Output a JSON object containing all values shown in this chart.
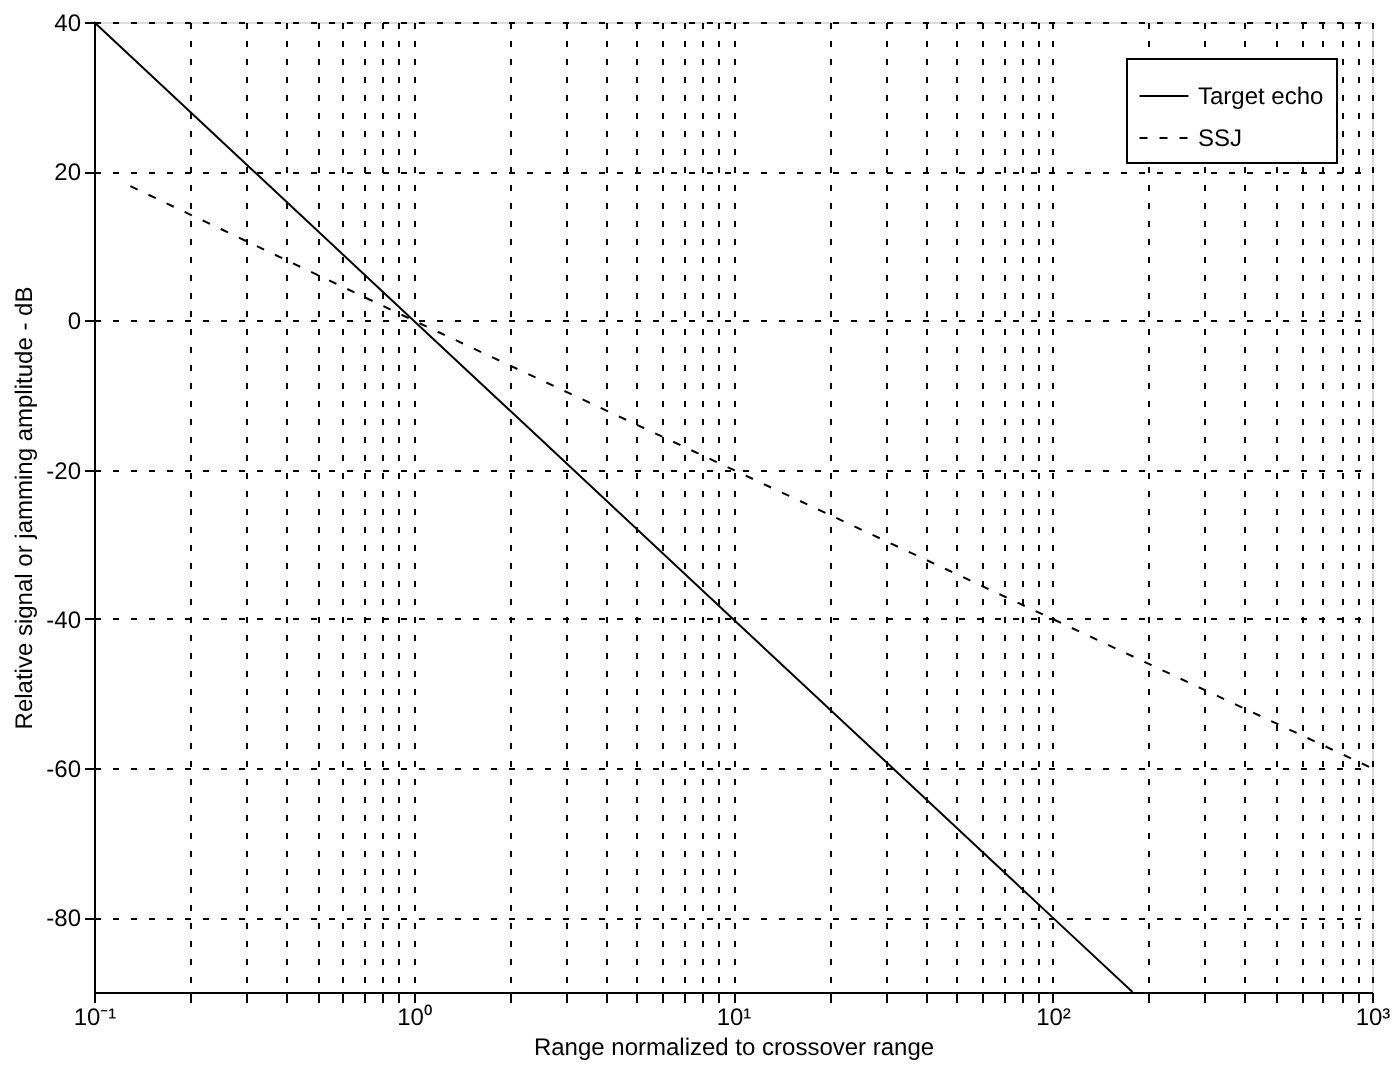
{
  "chart_data": {
    "type": "line",
    "xlabel": "Range normalized to crossover range",
    "ylabel": "Relative signal or jamming amplitude - dB",
    "xlim": [
      0.1,
      1000
    ],
    "ylim": [
      -90,
      40
    ],
    "log": "x",
    "grid": true,
    "legend": "top right",
    "marker": "none",
    "xticks": [
      {
        "value": 0.1,
        "label": "10⁻¹"
      },
      {
        "value": 0.2,
        "label": null
      },
      {
        "value": 0.3,
        "label": null
      },
      {
        "value": 0.4,
        "label": null
      },
      {
        "value": 0.5,
        "label": null
      },
      {
        "value": 0.6,
        "label": null
      },
      {
        "value": 0.7,
        "label": null
      },
      {
        "value": 0.8,
        "label": null
      },
      {
        "value": 0.9,
        "label": null
      },
      {
        "value": 1,
        "label": "10⁰"
      },
      {
        "value": 2,
        "label": null
      },
      {
        "value": 3,
        "label": null
      },
      {
        "value": 4,
        "label": null
      },
      {
        "value": 5,
        "label": null
      },
      {
        "value": 6,
        "label": null
      },
      {
        "value": 7,
        "label": null
      },
      {
        "value": 8,
        "label": null
      },
      {
        "value": 9,
        "label": null
      },
      {
        "value": 10,
        "label": "10¹"
      },
      {
        "value": 20,
        "label": null
      },
      {
        "value": 30,
        "label": null
      },
      {
        "value": 40,
        "label": null
      },
      {
        "value": 50,
        "label": null
      },
      {
        "value": 60,
        "label": null
      },
      {
        "value": 70,
        "label": null
      },
      {
        "value": 80,
        "label": null
      },
      {
        "value": 90,
        "label": null
      },
      {
        "value": 100,
        "label": "10²"
      },
      {
        "value": 200,
        "label": null
      },
      {
        "value": 300,
        "label": null
      },
      {
        "value": 400,
        "label": null
      },
      {
        "value": 500,
        "label": null
      },
      {
        "value": 600,
        "label": null
      },
      {
        "value": 700,
        "label": null
      },
      {
        "value": 800,
        "label": null
      },
      {
        "value": 900,
        "label": null
      },
      {
        "value": 1000,
        "label": "10³"
      }
    ],
    "yticks": [
      -80,
      -60,
      -40,
      -20,
      0,
      20,
      40
    ],
    "series": [
      {
        "name": "Target echo",
        "color": "#000000",
        "line_style": "solid",
        "x": [
          0.1,
          1,
          10,
          100,
          178
        ],
        "values": [
          40,
          0,
          -40,
          -80,
          -90
        ]
      },
      {
        "name": "SSJ",
        "color": "#000000",
        "line_style": "dashed",
        "x": [
          0.13,
          1,
          10,
          100,
          1000
        ],
        "values": [
          18,
          0,
          -20,
          -40,
          -60
        ]
      }
    ]
  }
}
